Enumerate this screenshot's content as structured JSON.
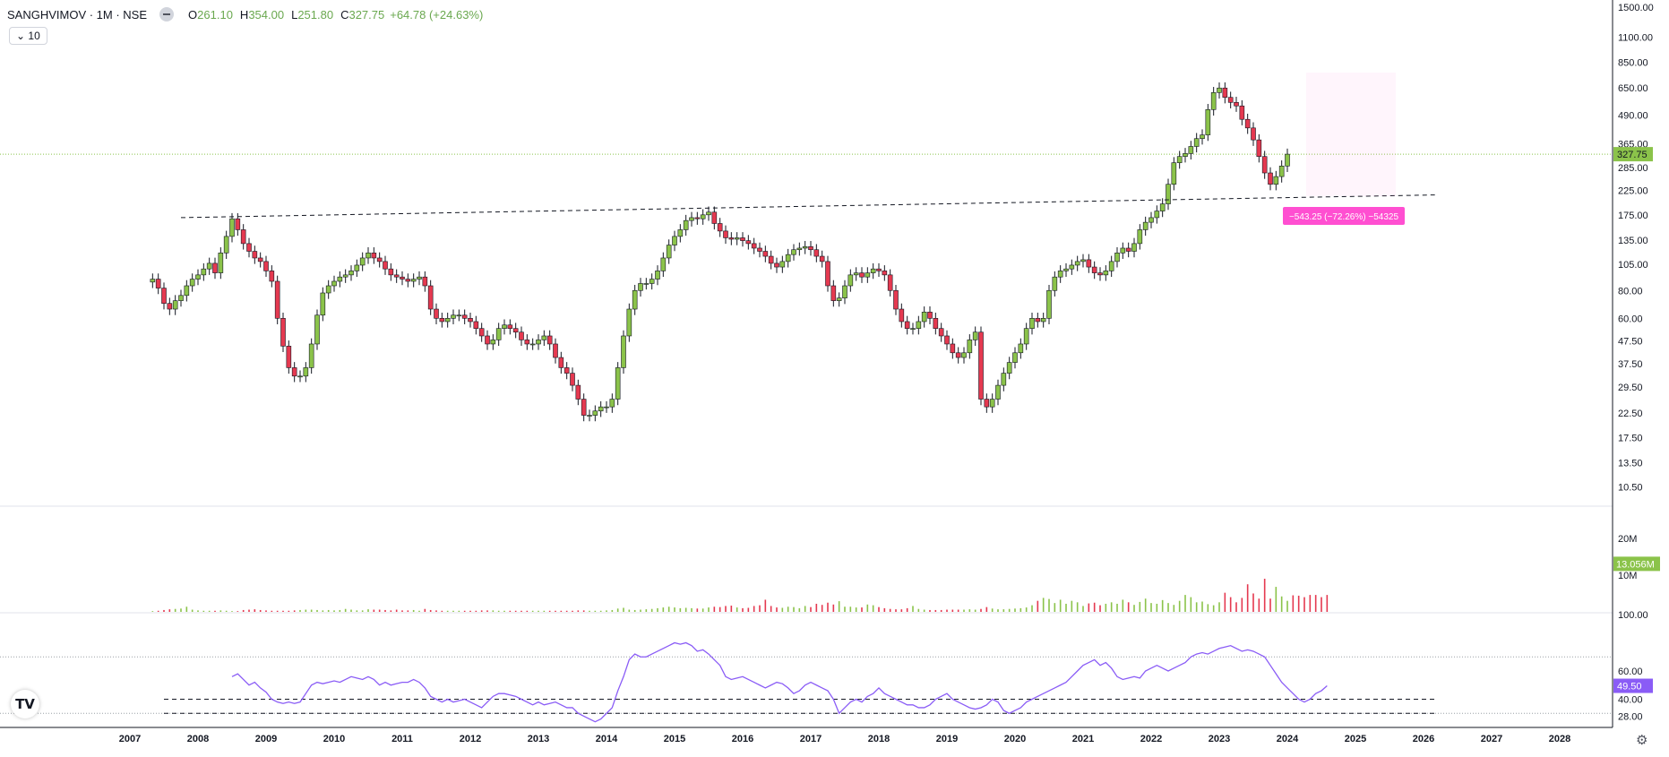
{
  "header": {
    "symbol": "SANGHVIMOV · 1M · NSE",
    "open_label": "O",
    "open": "261.10",
    "high_label": "H",
    "high": "354.00",
    "low_label": "L",
    "low": "251.80",
    "close_label": "C",
    "close": "327.75",
    "change": "+64.78 (+24.63%)"
  },
  "indicator_toggle": {
    "icon": "chevron-down-icon",
    "count": "10"
  },
  "colors": {
    "up": "#8bc34a",
    "down": "#e53950",
    "rsi": "#8a5cf6",
    "measure": "#ff4fd1",
    "price_badge": "#8bc34a",
    "rsi_badge": "#8a5cf6"
  },
  "chart_data": [
    {
      "type": "candlestick",
      "scale": "log",
      "x": [
        "2007",
        "2008",
        "2009",
        "2010",
        "2011",
        "2012",
        "2013",
        "2014",
        "2015",
        "2016",
        "2017",
        "2018",
        "2019",
        "2020",
        "2021",
        "2022",
        "2023",
        "2024",
        "2025",
        "2026",
        "2027",
        "2028"
      ],
      "xlim": [
        "2007-01",
        "2028-12"
      ],
      "ylim": [
        9,
        1500
      ],
      "y_ticks": [
        "1500.00",
        "1100.00",
        "850.00",
        "650.00",
        "490.00",
        "365.00",
        "285.00",
        "225.00",
        "175.00",
        "135.00",
        "105.00",
        "80.00",
        "60.00",
        "47.50",
        "37.50",
        "29.50",
        "22.50",
        "17.50",
        "13.50",
        "10.50"
      ],
      "last_price": "327.75",
      "closes": [
        90,
        82,
        70,
        66,
        72,
        76,
        84,
        90,
        94,
        100,
        106,
        96,
        118,
        140,
        168,
        150,
        130,
        120,
        112,
        108,
        98,
        88,
        60,
        45,
        36,
        33,
        33,
        36,
        46,
        62,
        78,
        84,
        88,
        92,
        94,
        98,
        104,
        112,
        118,
        112,
        108,
        100,
        94,
        92,
        90,
        88,
        90,
        92,
        84,
        66,
        60,
        58,
        60,
        62,
        62,
        60,
        58,
        54,
        50,
        46,
        48,
        54,
        56,
        54,
        52,
        48,
        46,
        46,
        48,
        50,
        46,
        40,
        36,
        34,
        30,
        26,
        22,
        22,
        23,
        24,
        24,
        26,
        36,
        50,
        66,
        80,
        86,
        86,
        90,
        98,
        112,
        128,
        140,
        150,
        165,
        170,
        168,
        175,
        180,
        160,
        148,
        138,
        136,
        138,
        134,
        130,
        124,
        120,
        114,
        106,
        102,
        108,
        116,
        122,
        124,
        126,
        122,
        114,
        108,
        84,
        72,
        74,
        84,
        94,
        96,
        92,
        96,
        100,
        98,
        94,
        80,
        66,
        58,
        54,
        54,
        58,
        64,
        60,
        54,
        50,
        46,
        42,
        40,
        42,
        48,
        52,
        26,
        24,
        26,
        30,
        34,
        38,
        42,
        46,
        54,
        60,
        58,
        60,
        80,
        92,
        98,
        100,
        104,
        108,
        110,
        102,
        96,
        94,
        98,
        108,
        118,
        124,
        120,
        130,
        150,
        162,
        170,
        182,
        196,
        240,
        300,
        320,
        330,
        355,
        385,
        400,
        520,
        620,
        650,
        590,
        560,
        540,
        470,
        430,
        380,
        320,
        270,
        240,
        260,
        290,
        327.75
      ],
      "dashed_trendline": {
        "from": "2007-10",
        "to": "2026-03"
      },
      "measure_label": "−543.25 (−72.26%) −54325"
    },
    {
      "type": "bar",
      "title": "",
      "y_ticks": [
        "20M",
        "10M"
      ],
      "last_value": "13.056M",
      "values": [
        0.2,
        0.3,
        0.5,
        0.7,
        0.8,
        0.9,
        1.4,
        0.6,
        0.4,
        0.3,
        0.3,
        0.3,
        0.4,
        0.3,
        0.2,
        0.2,
        0.5,
        0.6,
        0.7,
        0.5,
        0.4,
        0.3,
        0.3,
        0.3,
        0.3,
        0.4,
        0.5,
        0.6,
        0.6,
        0.5,
        0.4,
        0.5,
        0.4,
        0.5,
        0.8,
        0.6,
        0.4,
        0.4,
        0.7,
        0.6,
        0.6,
        0.5,
        0.4,
        0.6,
        0.4,
        0.4,
        0.5,
        0.3,
        0.8,
        0.5,
        0.4,
        0.3,
        0.3,
        0.3,
        0.3,
        0.3,
        0.3,
        0.3,
        0.4,
        0.4,
        0.4,
        0.3,
        0.3,
        0.3,
        0.3,
        0.3,
        0.3,
        0.3,
        0.3,
        0.3,
        0.3,
        0.3,
        0.3,
        0.3,
        0.3,
        0.4,
        0.4,
        0.3,
        0.3,
        0.3,
        0.4,
        0.5,
        0.9,
        1.1,
        0.6,
        0.5,
        0.6,
        0.7,
        0.8,
        1.0,
        1.2,
        1.4,
        1.2,
        1.0,
        1.1,
        1.0,
        0.9,
        0.9,
        1.2,
        1.4,
        1.3,
        1.6,
        1.7,
        1.2,
        1.0,
        1.1,
        1.6,
        1.8,
        3.3,
        1.6,
        1.2,
        1.1,
        1.4,
        1.3,
        1.0,
        1.6,
        1.3,
        2.2,
        1.9,
        2.5,
        2.0,
        2.9,
        1.4,
        1.4,
        1.2,
        1.2,
        2.0,
        1.8,
        1.3,
        1.0,
        0.8,
        0.7,
        0.7,
        1.0,
        1.6,
        0.8,
        0.6,
        0.5,
        0.5,
        0.5,
        0.6,
        0.6,
        0.6,
        0.6,
        0.7,
        0.6,
        0.8,
        1.3,
        0.9,
        0.7,
        0.7,
        0.8,
        0.9,
        1.0,
        1.2,
        1.8,
        3.0,
        3.8,
        3.5,
        2.4,
        3.3,
        2.2,
        3.0,
        2.6,
        1.6,
        2.3,
        2.5,
        1.8,
        2.2,
        2.6,
        2.2,
        3.3,
        2.6,
        1.9,
        2.7,
        3.6,
        2.4,
        2.2,
        3.2,
        2.4,
        1.9,
        3.0,
        4.6,
        4.0,
        2.6,
        2.8,
        2.1,
        1.8,
        2.6,
        5.2,
        4.0,
        2.6,
        3.8,
        7.5,
        5.0,
        3.6,
        9.0,
        3.6,
        6.8,
        4.2,
        3.0,
        4.5,
        4.4,
        4.0,
        4.6,
        4.6,
        4.0,
        4.6
      ]
    },
    {
      "type": "line",
      "title": "",
      "y_ticks": [
        "100.00",
        "60.00",
        "40.00",
        "28.00"
      ],
      "last_value": "49.50",
      "ylim": [
        20,
        100
      ],
      "values": [
        56,
        58,
        54,
        50,
        52,
        48,
        45,
        40,
        38,
        37,
        38,
        37,
        38,
        44,
        50,
        52,
        51,
        52,
        53,
        52,
        54,
        56,
        55,
        54,
        56,
        54,
        50,
        52,
        50,
        51,
        52,
        52,
        54,
        52,
        48,
        42,
        40,
        38,
        40,
        38,
        39,
        40,
        38,
        36,
        34,
        38,
        42,
        44,
        44,
        43,
        42,
        40,
        38,
        36,
        38,
        36,
        37,
        38,
        36,
        34,
        34,
        30,
        28,
        26,
        24,
        26,
        30,
        34,
        46,
        56,
        68,
        72,
        70,
        70,
        72,
        74,
        76,
        78,
        80,
        79,
        80,
        78,
        74,
        75,
        72,
        68,
        64,
        56,
        54,
        55,
        56,
        54,
        52,
        50,
        48,
        50,
        52,
        51,
        48,
        44,
        46,
        50,
        52,
        50,
        48,
        46,
        40,
        30,
        34,
        38,
        40,
        38,
        42,
        44,
        48,
        44,
        42,
        40,
        38,
        36,
        36,
        34,
        34,
        36,
        40,
        42,
        44,
        40,
        38,
        36,
        34,
        33,
        34,
        36,
        40,
        38,
        32,
        30,
        32,
        34,
        38,
        40,
        42,
        44,
        46,
        48,
        50,
        52,
        56,
        60,
        64,
        66,
        68,
        64,
        66,
        62,
        56,
        54,
        55,
        56,
        55,
        60,
        62,
        64,
        62,
        60,
        62,
        64,
        66,
        70,
        72,
        73,
        72,
        74,
        76,
        77,
        78,
        76,
        74,
        75,
        74,
        72,
        70,
        64,
        58,
        52,
        48,
        44,
        40,
        38,
        40,
        44,
        46,
        49.5
      ],
      "levels": [
        40,
        30
      ]
    }
  ]
}
